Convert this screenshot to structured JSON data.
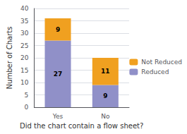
{
  "chart_data": {
    "type": "bar",
    "stacked": true,
    "xlabel": "Did the chart contain a flow sheet?",
    "ylabel": "Number of Charts",
    "categories": [
      "Yes",
      "No"
    ],
    "series": [
      {
        "name": "Reduced",
        "color": "#9090c8",
        "values": [
          27,
          9
        ]
      },
      {
        "name": "Not Reduced",
        "color": "#f0a020",
        "values": [
          9,
          11
        ]
      }
    ],
    "ylim": [
      0,
      40
    ],
    "yticks": [
      0,
      5,
      10,
      15,
      20,
      25,
      30,
      35,
      40
    ],
    "grid": true,
    "legend": "right",
    "data_labels": true
  }
}
